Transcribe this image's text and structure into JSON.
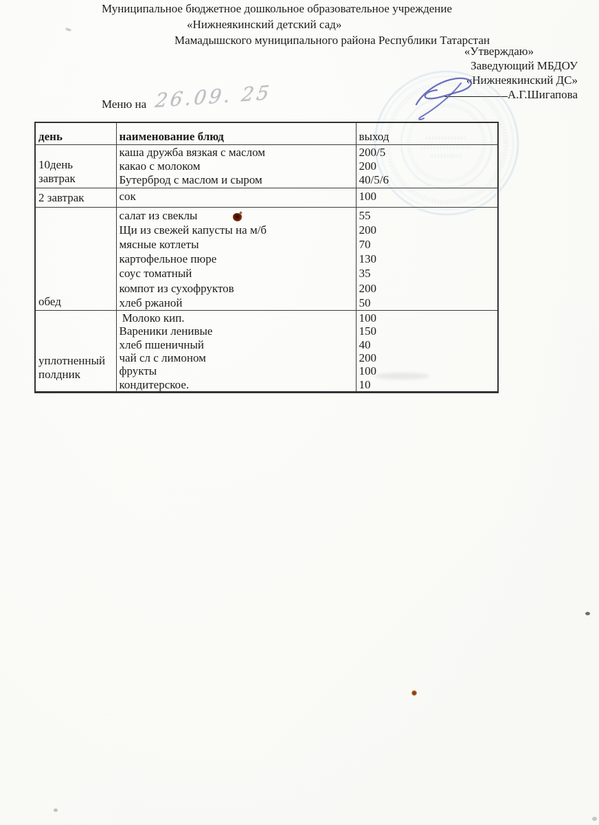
{
  "document": {
    "header_lines": [
      "Муниципальное бюджетное дошкольное образовательное  учреждение",
      "«Нижнеякинский детский сад»",
      "Мамадышского муниципального района Республики Татарстан"
    ],
    "approval": {
      "approve_word": "«Утверждаю»",
      "position_line": "Заведующий МБДОУ",
      "org_line": "«Нижнеякинский ДС»",
      "signer_name": "А.Г.Шигапова"
    },
    "menu_label": "Меню на",
    "menu_date_handwritten": "26.09. 25",
    "table": {
      "headers": [
        "день",
        "наименование блюд",
        "выход"
      ],
      "rows": [
        {
          "day_lines": [
            "10день",
            "завтрак"
          ],
          "dishes": [
            "каша дружба вязкая с маслом",
            "какао с молоком",
            "Бутерброд с маслом и сыром"
          ],
          "portions": [
            "200/5",
            "200",
            "40/5/6"
          ]
        },
        {
          "day_lines": [
            "2 завтрак"
          ],
          "dishes": [
            "сок"
          ],
          "portions": [
            "100"
          ]
        },
        {
          "day_lines": [
            "обед"
          ],
          "dishes": [
            "салат из свеклы",
            "Щи из свежей капусты на м/б",
            "мясные котлеты",
            "картофельное пюре",
            "соус томатный",
            "компот из сухофруктов",
            "хлеб ржаной"
          ],
          "portions": [
            "55",
            "200",
            "70",
            "130",
            "35",
            "200",
            "50"
          ]
        },
        {
          "day_lines": [
            "уплотненный",
            "полдник"
          ],
          "dishes": [
            " Молоко кип.",
            "Вареники ленивые",
            "хлеб пшеничный",
            "чай сл с лимоном",
            "фрукты",
            "кондитерское."
          ],
          "portions": [
            "100",
            "150",
            "40",
            "200",
            "100",
            "10"
          ]
        }
      ]
    },
    "colors": {
      "stamp_blue": "#9fc2e0",
      "signature_blue": "#5b61b6"
    }
  }
}
